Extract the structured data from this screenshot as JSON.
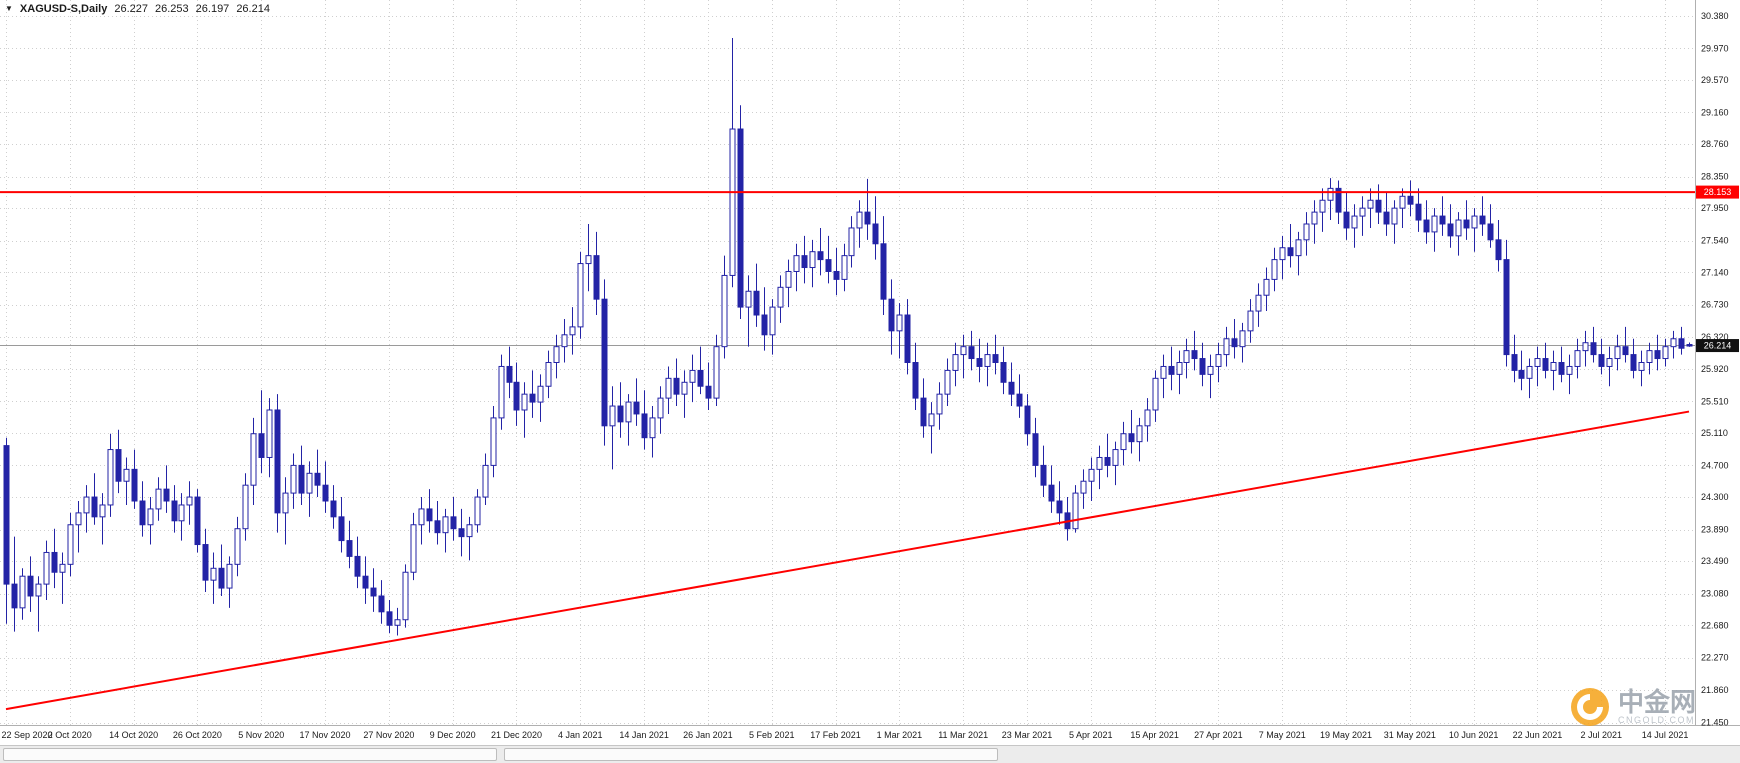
{
  "header": {
    "dropdown_icon": "symbol-dropdown",
    "symbol": "XAGUSD-S,Daily",
    "open": "26.227",
    "high": "26.253",
    "low": "26.197",
    "close": "26.214"
  },
  "watermark": {
    "name_cn": "中金网",
    "name_en": "CNGOLD.COM"
  },
  "bottom_bar": {
    "tabs": [
      "",
      ""
    ]
  },
  "chart_data": {
    "type": "candlestick",
    "symbol": "XAGUSD-S",
    "timeframe": "Daily",
    "title": "XAGUSD-S,Daily",
    "grid": true,
    "ylim": [
      21.42,
      30.58
    ],
    "y_axis_labels": [
      "30.380",
      "29.970",
      "29.570",
      "29.160",
      "28.760",
      "28.350",
      "27.950",
      "27.540",
      "27.140",
      "26.730",
      "26.320",
      "25.920",
      "25.510",
      "25.110",
      "24.700",
      "24.300",
      "23.890",
      "23.490",
      "23.080",
      "22.680",
      "22.270",
      "21.860",
      "21.450"
    ],
    "x_axis_labels": [
      "22 Sep 2020",
      "2 Oct 2020",
      "14 Oct 2020",
      "26 Oct 2020",
      "5 Nov 2020",
      "17 Nov 2020",
      "27 Nov 2020",
      "9 Dec 2020",
      "21 Dec 2020",
      "4 Jan 2021",
      "14 Jan 2021",
      "26 Jan 2021",
      "5 Feb 2021",
      "17 Feb 2021",
      "1 Mar 2021",
      "11 Mar 2021",
      "23 Mar 2021",
      "5 Apr 2021",
      "15 Apr 2021",
      "27 Apr 2021",
      "7 May 2021",
      "19 May 2021",
      "31 May 2021",
      "10 Jun 2021",
      "22 Jun 2021",
      "2 Jul 2021",
      "14 Jul 2021"
    ],
    "x_tick_bars": [
      0,
      8,
      16,
      24,
      32,
      40,
      48,
      56,
      64,
      72,
      80,
      88,
      96,
      104,
      112,
      120,
      128,
      136,
      144,
      152,
      160,
      168,
      176,
      184,
      192,
      200,
      208
    ],
    "overlays": {
      "resistance_line": {
        "price": 28.153,
        "label": "28.153",
        "color": "#ff0000"
      },
      "trendline": {
        "from_bar": 0,
        "from_price": 21.62,
        "to_bar": 211,
        "to_price": 25.38,
        "color": "#ff0000"
      },
      "current_price": {
        "price": 26.214,
        "label": "26.214"
      }
    },
    "colors": {
      "bull": "#ffffff",
      "bear": "#2323a6",
      "outline": "#2323a6",
      "grid": "#cfcfcf",
      "current": "#9a9a9a",
      "resistance_tag_bg": "#ff0000",
      "current_tag_bg": "#111111"
    },
    "ohlc": [
      [
        24.95,
        25.05,
        22.7,
        23.2
      ],
      [
        23.2,
        23.8,
        22.6,
        22.9
      ],
      [
        22.9,
        23.4,
        22.75,
        23.3
      ],
      [
        23.3,
        23.55,
        22.85,
        23.05
      ],
      [
        23.05,
        23.3,
        22.6,
        23.2
      ],
      [
        23.2,
        23.75,
        23.0,
        23.6
      ],
      [
        23.6,
        23.9,
        23.15,
        23.35
      ],
      [
        23.35,
        23.6,
        22.95,
        23.45
      ],
      [
        23.45,
        24.1,
        23.3,
        23.95
      ],
      [
        23.95,
        24.25,
        23.6,
        24.1
      ],
      [
        24.1,
        24.45,
        23.85,
        24.3
      ],
      [
        24.3,
        24.6,
        23.95,
        24.05
      ],
      [
        24.05,
        24.35,
        23.7,
        24.2
      ],
      [
        24.2,
        25.1,
        24.05,
        24.9
      ],
      [
        24.9,
        25.15,
        24.35,
        24.5
      ],
      [
        24.5,
        24.8,
        24.2,
        24.65
      ],
      [
        24.65,
        24.9,
        24.15,
        24.25
      ],
      [
        24.25,
        24.5,
        23.8,
        23.95
      ],
      [
        23.95,
        24.3,
        23.7,
        24.15
      ],
      [
        24.15,
        24.55,
        24.0,
        24.4
      ],
      [
        24.4,
        24.7,
        24.1,
        24.25
      ],
      [
        24.25,
        24.45,
        23.85,
        24.0
      ],
      [
        24.0,
        24.35,
        23.75,
        24.2
      ],
      [
        24.2,
        24.5,
        23.95,
        24.3
      ],
      [
        24.3,
        24.4,
        23.6,
        23.7
      ],
      [
        23.7,
        23.9,
        23.1,
        23.25
      ],
      [
        23.25,
        23.6,
        22.95,
        23.4
      ],
      [
        23.4,
        23.7,
        23.05,
        23.15
      ],
      [
        23.15,
        23.55,
        22.9,
        23.45
      ],
      [
        23.45,
        24.05,
        23.3,
        23.9
      ],
      [
        23.9,
        24.6,
        23.75,
        24.45
      ],
      [
        24.45,
        25.3,
        24.2,
        25.1
      ],
      [
        25.1,
        25.65,
        24.6,
        24.8
      ],
      [
        24.8,
        25.55,
        24.55,
        25.4
      ],
      [
        25.4,
        25.6,
        23.85,
        24.1
      ],
      [
        24.1,
        24.55,
        23.7,
        24.35
      ],
      [
        24.35,
        24.85,
        24.15,
        24.7
      ],
      [
        24.7,
        24.95,
        24.2,
        24.35
      ],
      [
        24.35,
        24.75,
        24.05,
        24.6
      ],
      [
        24.6,
        24.9,
        24.3,
        24.45
      ],
      [
        24.45,
        24.75,
        24.1,
        24.25
      ],
      [
        24.25,
        24.45,
        23.9,
        24.05
      ],
      [
        24.05,
        24.3,
        23.6,
        23.75
      ],
      [
        23.75,
        24.0,
        23.4,
        23.55
      ],
      [
        23.55,
        23.8,
        23.15,
        23.3
      ],
      [
        23.3,
        23.55,
        22.95,
        23.15
      ],
      [
        23.15,
        23.4,
        22.85,
        23.05
      ],
      [
        23.05,
        23.25,
        22.7,
        22.85
      ],
      [
        22.85,
        23.0,
        22.58,
        22.68
      ],
      [
        22.68,
        22.9,
        22.55,
        22.75
      ],
      [
        22.75,
        23.45,
        22.65,
        23.35
      ],
      [
        23.35,
        24.1,
        23.25,
        23.95
      ],
      [
        23.95,
        24.3,
        23.7,
        24.15
      ],
      [
        24.15,
        24.4,
        23.85,
        24.0
      ],
      [
        24.0,
        24.25,
        23.7,
        23.85
      ],
      [
        23.85,
        24.15,
        23.6,
        24.05
      ],
      [
        24.05,
        24.3,
        23.75,
        23.9
      ],
      [
        23.9,
        24.15,
        23.55,
        23.8
      ],
      [
        23.8,
        24.05,
        23.5,
        23.95
      ],
      [
        23.95,
        24.4,
        23.85,
        24.3
      ],
      [
        24.3,
        24.85,
        24.2,
        24.7
      ],
      [
        24.7,
        25.45,
        24.55,
        25.3
      ],
      [
        25.3,
        26.1,
        25.15,
        25.95
      ],
      [
        25.95,
        26.2,
        25.55,
        25.75
      ],
      [
        25.75,
        26.0,
        25.2,
        25.4
      ],
      [
        25.4,
        25.75,
        25.05,
        25.6
      ],
      [
        25.6,
        25.9,
        25.3,
        25.5
      ],
      [
        25.5,
        25.85,
        25.25,
        25.7
      ],
      [
        25.7,
        26.15,
        25.55,
        26.0
      ],
      [
        26.0,
        26.35,
        25.8,
        26.2
      ],
      [
        26.2,
        26.55,
        26.0,
        26.35
      ],
      [
        26.35,
        26.7,
        26.1,
        26.45
      ],
      [
        26.45,
        27.4,
        26.3,
        27.25
      ],
      [
        27.25,
        27.75,
        26.9,
        27.35
      ],
      [
        27.35,
        27.65,
        26.6,
        26.8
      ],
      [
        26.8,
        27.05,
        24.95,
        25.2
      ],
      [
        25.2,
        25.7,
        24.65,
        25.45
      ],
      [
        25.45,
        25.75,
        25.05,
        25.25
      ],
      [
        25.25,
        25.6,
        24.95,
        25.5
      ],
      [
        25.5,
        25.8,
        25.2,
        25.35
      ],
      [
        25.35,
        25.65,
        24.9,
        25.05
      ],
      [
        25.05,
        25.45,
        24.8,
        25.3
      ],
      [
        25.3,
        25.7,
        25.1,
        25.55
      ],
      [
        25.55,
        25.95,
        25.35,
        25.8
      ],
      [
        25.8,
        26.05,
        25.45,
        25.6
      ],
      [
        25.6,
        25.9,
        25.3,
        25.75
      ],
      [
        25.75,
        26.1,
        25.5,
        25.9
      ],
      [
        25.9,
        26.2,
        25.6,
        25.7
      ],
      [
        25.7,
        26.0,
        25.4,
        25.55
      ],
      [
        25.55,
        26.35,
        25.45,
        26.2
      ],
      [
        26.2,
        27.35,
        26.05,
        27.1
      ],
      [
        27.1,
        30.1,
        26.95,
        28.95
      ],
      [
        28.95,
        29.25,
        26.55,
        26.7
      ],
      [
        26.7,
        27.1,
        26.2,
        26.9
      ],
      [
        26.9,
        27.25,
        26.45,
        26.6
      ],
      [
        26.6,
        26.95,
        26.15,
        26.35
      ],
      [
        26.35,
        26.8,
        26.1,
        26.7
      ],
      [
        26.7,
        27.1,
        26.5,
        26.95
      ],
      [
        26.95,
        27.3,
        26.7,
        27.15
      ],
      [
        27.15,
        27.5,
        26.9,
        27.35
      ],
      [
        27.35,
        27.6,
        27.0,
        27.2
      ],
      [
        27.2,
        27.55,
        26.95,
        27.4
      ],
      [
        27.4,
        27.7,
        27.1,
        27.3
      ],
      [
        27.3,
        27.6,
        27.0,
        27.15
      ],
      [
        27.15,
        27.45,
        26.85,
        27.05
      ],
      [
        27.05,
        27.5,
        26.9,
        27.35
      ],
      [
        27.35,
        27.85,
        27.2,
        27.7
      ],
      [
        27.7,
        28.05,
        27.45,
        27.9
      ],
      [
        27.9,
        28.32,
        27.55,
        27.75
      ],
      [
        27.75,
        28.1,
        27.3,
        27.5
      ],
      [
        27.5,
        27.85,
        26.6,
        26.8
      ],
      [
        26.8,
        27.05,
        26.1,
        26.4
      ],
      [
        26.4,
        26.75,
        26.05,
        26.6
      ],
      [
        26.6,
        26.8,
        25.85,
        26.0
      ],
      [
        26.0,
        26.25,
        25.4,
        25.55
      ],
      [
        25.55,
        25.8,
        25.05,
        25.2
      ],
      [
        25.2,
        25.5,
        24.85,
        25.35
      ],
      [
        25.35,
        25.75,
        25.15,
        25.6
      ],
      [
        25.6,
        26.05,
        25.45,
        25.9
      ],
      [
        25.9,
        26.25,
        25.7,
        26.1
      ],
      [
        26.1,
        26.35,
        25.8,
        26.2
      ],
      [
        26.2,
        26.4,
        25.9,
        26.05
      ],
      [
        26.05,
        26.3,
        25.75,
        25.95
      ],
      [
        25.95,
        26.25,
        25.7,
        26.1
      ],
      [
        26.1,
        26.35,
        25.85,
        26.0
      ],
      [
        26.0,
        26.2,
        25.6,
        25.75
      ],
      [
        25.75,
        26.0,
        25.45,
        25.6
      ],
      [
        25.6,
        25.85,
        25.3,
        25.45
      ],
      [
        25.45,
        25.6,
        24.95,
        25.1
      ],
      [
        25.1,
        25.3,
        24.55,
        24.7
      ],
      [
        24.7,
        24.95,
        24.3,
        24.45
      ],
      [
        24.45,
        24.7,
        24.1,
        24.25
      ],
      [
        24.25,
        24.5,
        23.95,
        24.1
      ],
      [
        24.1,
        24.3,
        23.75,
        23.9
      ],
      [
        23.9,
        24.45,
        23.85,
        24.35
      ],
      [
        24.35,
        24.65,
        24.15,
        24.5
      ],
      [
        24.5,
        24.8,
        24.25,
        24.65
      ],
      [
        24.65,
        24.95,
        24.4,
        24.8
      ],
      [
        24.8,
        25.1,
        24.55,
        24.7
      ],
      [
        24.7,
        25.0,
        24.45,
        24.9
      ],
      [
        24.9,
        25.25,
        24.7,
        25.1
      ],
      [
        25.1,
        25.4,
        24.85,
        25.0
      ],
      [
        25.0,
        25.3,
        24.75,
        25.2
      ],
      [
        25.2,
        25.55,
        25.0,
        25.4
      ],
      [
        25.4,
        25.9,
        25.25,
        25.8
      ],
      [
        25.8,
        26.1,
        25.55,
        25.95
      ],
      [
        25.95,
        26.2,
        25.65,
        25.85
      ],
      [
        25.85,
        26.15,
        25.6,
        26.0
      ],
      [
        26.0,
        26.3,
        25.8,
        26.15
      ],
      [
        26.15,
        26.4,
        25.9,
        26.05
      ],
      [
        26.05,
        26.25,
        25.7,
        25.85
      ],
      [
        25.85,
        26.1,
        25.55,
        25.95
      ],
      [
        25.95,
        26.25,
        25.75,
        26.1
      ],
      [
        26.1,
        26.45,
        25.95,
        26.3
      ],
      [
        26.3,
        26.55,
        26.05,
        26.2
      ],
      [
        26.2,
        26.5,
        26.0,
        26.4
      ],
      [
        26.4,
        26.8,
        26.25,
        26.65
      ],
      [
        26.65,
        27.0,
        26.45,
        26.85
      ],
      [
        26.85,
        27.2,
        26.65,
        27.05
      ],
      [
        27.05,
        27.45,
        26.9,
        27.3
      ],
      [
        27.3,
        27.6,
        27.05,
        27.45
      ],
      [
        27.45,
        27.75,
        27.2,
        27.35
      ],
      [
        27.35,
        27.65,
        27.1,
        27.55
      ],
      [
        27.55,
        27.9,
        27.35,
        27.75
      ],
      [
        27.75,
        28.05,
        27.5,
        27.9
      ],
      [
        27.9,
        28.2,
        27.65,
        28.05
      ],
      [
        28.05,
        28.33,
        27.8,
        28.2
      ],
      [
        28.2,
        28.3,
        27.75,
        27.9
      ],
      [
        27.9,
        28.15,
        27.55,
        27.7
      ],
      [
        27.7,
        28.0,
        27.45,
        27.85
      ],
      [
        27.85,
        28.1,
        27.6,
        27.95
      ],
      [
        27.95,
        28.2,
        27.7,
        28.05
      ],
      [
        28.05,
        28.25,
        27.75,
        27.9
      ],
      [
        27.9,
        28.15,
        27.6,
        27.75
      ],
      [
        27.75,
        28.05,
        27.5,
        27.95
      ],
      [
        27.95,
        28.2,
        27.7,
        28.1
      ],
      [
        28.1,
        28.3,
        27.85,
        28.0
      ],
      [
        28.0,
        28.2,
        27.65,
        27.8
      ],
      [
        27.8,
        28.05,
        27.5,
        27.65
      ],
      [
        27.65,
        27.95,
        27.4,
        27.85
      ],
      [
        27.85,
        28.1,
        27.6,
        27.75
      ],
      [
        27.75,
        28.0,
        27.45,
        27.6
      ],
      [
        27.6,
        27.9,
        27.35,
        27.8
      ],
      [
        27.8,
        28.05,
        27.55,
        27.7
      ],
      [
        27.7,
        27.95,
        27.4,
        27.85
      ],
      [
        27.85,
        28.1,
        27.6,
        27.75
      ],
      [
        27.75,
        28.0,
        27.45,
        27.55
      ],
      [
        27.55,
        27.8,
        27.15,
        27.3
      ],
      [
        27.3,
        27.55,
        25.95,
        26.1
      ],
      [
        26.1,
        26.35,
        25.75,
        25.9
      ],
      [
        25.9,
        26.15,
        25.65,
        25.8
      ],
      [
        25.8,
        26.05,
        25.55,
        25.95
      ],
      [
        25.95,
        26.2,
        25.7,
        26.05
      ],
      [
        26.05,
        26.25,
        25.8,
        25.9
      ],
      [
        25.9,
        26.15,
        25.65,
        26.0
      ],
      [
        26.0,
        26.2,
        25.75,
        25.85
      ],
      [
        25.85,
        26.1,
        25.6,
        25.95
      ],
      [
        25.95,
        26.3,
        25.8,
        26.15
      ],
      [
        26.15,
        26.4,
        25.95,
        26.25
      ],
      [
        26.25,
        26.45,
        26.0,
        26.1
      ],
      [
        26.1,
        26.3,
        25.85,
        25.95
      ],
      [
        25.95,
        26.2,
        25.7,
        26.05
      ],
      [
        26.05,
        26.35,
        25.9,
        26.2
      ],
      [
        26.2,
        26.45,
        26.0,
        26.1
      ],
      [
        26.1,
        26.3,
        25.8,
        25.9
      ],
      [
        25.9,
        26.15,
        25.7,
        26.0
      ],
      [
        26.0,
        26.25,
        25.85,
        26.15
      ],
      [
        26.15,
        26.35,
        25.9,
        26.05
      ],
      [
        26.05,
        26.3,
        25.95,
        26.2
      ],
      [
        26.2,
        26.4,
        26.05,
        26.3
      ],
      [
        26.3,
        26.45,
        26.1,
        26.18
      ],
      [
        26.227,
        26.253,
        26.197,
        26.214
      ]
    ]
  }
}
